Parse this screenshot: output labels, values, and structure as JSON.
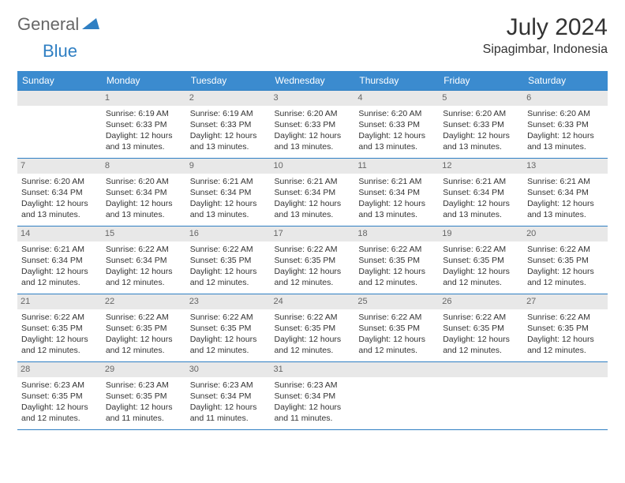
{
  "logo": {
    "text1": "General",
    "text2": "Blue"
  },
  "title": "July 2024",
  "location": "Sipagimbar, Indonesia",
  "weekdays": [
    "Sunday",
    "Monday",
    "Tuesday",
    "Wednesday",
    "Thursday",
    "Friday",
    "Saturday"
  ],
  "colors": {
    "header_bg": "#3b8bcf",
    "header_text": "#ffffff",
    "daynum_bg": "#e8e8e8",
    "daynum_text": "#666666",
    "border": "#2f7fc3",
    "body_text": "#333333",
    "logo_gray": "#666666",
    "logo_blue": "#2f7fc3"
  },
  "weeks": [
    [
      {
        "day": "",
        "sunrise": "",
        "sunset": "",
        "daylight": ""
      },
      {
        "day": "1",
        "sunrise": "Sunrise: 6:19 AM",
        "sunset": "Sunset: 6:33 PM",
        "daylight": "Daylight: 12 hours and 13 minutes."
      },
      {
        "day": "2",
        "sunrise": "Sunrise: 6:19 AM",
        "sunset": "Sunset: 6:33 PM",
        "daylight": "Daylight: 12 hours and 13 minutes."
      },
      {
        "day": "3",
        "sunrise": "Sunrise: 6:20 AM",
        "sunset": "Sunset: 6:33 PM",
        "daylight": "Daylight: 12 hours and 13 minutes."
      },
      {
        "day": "4",
        "sunrise": "Sunrise: 6:20 AM",
        "sunset": "Sunset: 6:33 PM",
        "daylight": "Daylight: 12 hours and 13 minutes."
      },
      {
        "day": "5",
        "sunrise": "Sunrise: 6:20 AM",
        "sunset": "Sunset: 6:33 PM",
        "daylight": "Daylight: 12 hours and 13 minutes."
      },
      {
        "day": "6",
        "sunrise": "Sunrise: 6:20 AM",
        "sunset": "Sunset: 6:33 PM",
        "daylight": "Daylight: 12 hours and 13 minutes."
      }
    ],
    [
      {
        "day": "7",
        "sunrise": "Sunrise: 6:20 AM",
        "sunset": "Sunset: 6:34 PM",
        "daylight": "Daylight: 12 hours and 13 minutes."
      },
      {
        "day": "8",
        "sunrise": "Sunrise: 6:20 AM",
        "sunset": "Sunset: 6:34 PM",
        "daylight": "Daylight: 12 hours and 13 minutes."
      },
      {
        "day": "9",
        "sunrise": "Sunrise: 6:21 AM",
        "sunset": "Sunset: 6:34 PM",
        "daylight": "Daylight: 12 hours and 13 minutes."
      },
      {
        "day": "10",
        "sunrise": "Sunrise: 6:21 AM",
        "sunset": "Sunset: 6:34 PM",
        "daylight": "Daylight: 12 hours and 13 minutes."
      },
      {
        "day": "11",
        "sunrise": "Sunrise: 6:21 AM",
        "sunset": "Sunset: 6:34 PM",
        "daylight": "Daylight: 12 hours and 13 minutes."
      },
      {
        "day": "12",
        "sunrise": "Sunrise: 6:21 AM",
        "sunset": "Sunset: 6:34 PM",
        "daylight": "Daylight: 12 hours and 13 minutes."
      },
      {
        "day": "13",
        "sunrise": "Sunrise: 6:21 AM",
        "sunset": "Sunset: 6:34 PM",
        "daylight": "Daylight: 12 hours and 13 minutes."
      }
    ],
    [
      {
        "day": "14",
        "sunrise": "Sunrise: 6:21 AM",
        "sunset": "Sunset: 6:34 PM",
        "daylight": "Daylight: 12 hours and 12 minutes."
      },
      {
        "day": "15",
        "sunrise": "Sunrise: 6:22 AM",
        "sunset": "Sunset: 6:34 PM",
        "daylight": "Daylight: 12 hours and 12 minutes."
      },
      {
        "day": "16",
        "sunrise": "Sunrise: 6:22 AM",
        "sunset": "Sunset: 6:35 PM",
        "daylight": "Daylight: 12 hours and 12 minutes."
      },
      {
        "day": "17",
        "sunrise": "Sunrise: 6:22 AM",
        "sunset": "Sunset: 6:35 PM",
        "daylight": "Daylight: 12 hours and 12 minutes."
      },
      {
        "day": "18",
        "sunrise": "Sunrise: 6:22 AM",
        "sunset": "Sunset: 6:35 PM",
        "daylight": "Daylight: 12 hours and 12 minutes."
      },
      {
        "day": "19",
        "sunrise": "Sunrise: 6:22 AM",
        "sunset": "Sunset: 6:35 PM",
        "daylight": "Daylight: 12 hours and 12 minutes."
      },
      {
        "day": "20",
        "sunrise": "Sunrise: 6:22 AM",
        "sunset": "Sunset: 6:35 PM",
        "daylight": "Daylight: 12 hours and 12 minutes."
      }
    ],
    [
      {
        "day": "21",
        "sunrise": "Sunrise: 6:22 AM",
        "sunset": "Sunset: 6:35 PM",
        "daylight": "Daylight: 12 hours and 12 minutes."
      },
      {
        "day": "22",
        "sunrise": "Sunrise: 6:22 AM",
        "sunset": "Sunset: 6:35 PM",
        "daylight": "Daylight: 12 hours and 12 minutes."
      },
      {
        "day": "23",
        "sunrise": "Sunrise: 6:22 AM",
        "sunset": "Sunset: 6:35 PM",
        "daylight": "Daylight: 12 hours and 12 minutes."
      },
      {
        "day": "24",
        "sunrise": "Sunrise: 6:22 AM",
        "sunset": "Sunset: 6:35 PM",
        "daylight": "Daylight: 12 hours and 12 minutes."
      },
      {
        "day": "25",
        "sunrise": "Sunrise: 6:22 AM",
        "sunset": "Sunset: 6:35 PM",
        "daylight": "Daylight: 12 hours and 12 minutes."
      },
      {
        "day": "26",
        "sunrise": "Sunrise: 6:22 AM",
        "sunset": "Sunset: 6:35 PM",
        "daylight": "Daylight: 12 hours and 12 minutes."
      },
      {
        "day": "27",
        "sunrise": "Sunrise: 6:22 AM",
        "sunset": "Sunset: 6:35 PM",
        "daylight": "Daylight: 12 hours and 12 minutes."
      }
    ],
    [
      {
        "day": "28",
        "sunrise": "Sunrise: 6:23 AM",
        "sunset": "Sunset: 6:35 PM",
        "daylight": "Daylight: 12 hours and 12 minutes."
      },
      {
        "day": "29",
        "sunrise": "Sunrise: 6:23 AM",
        "sunset": "Sunset: 6:35 PM",
        "daylight": "Daylight: 12 hours and 11 minutes."
      },
      {
        "day": "30",
        "sunrise": "Sunrise: 6:23 AM",
        "sunset": "Sunset: 6:34 PM",
        "daylight": "Daylight: 12 hours and 11 minutes."
      },
      {
        "day": "31",
        "sunrise": "Sunrise: 6:23 AM",
        "sunset": "Sunset: 6:34 PM",
        "daylight": "Daylight: 12 hours and 11 minutes."
      },
      {
        "day": "",
        "sunrise": "",
        "sunset": "",
        "daylight": ""
      },
      {
        "day": "",
        "sunrise": "",
        "sunset": "",
        "daylight": ""
      },
      {
        "day": "",
        "sunrise": "",
        "sunset": "",
        "daylight": ""
      }
    ]
  ]
}
